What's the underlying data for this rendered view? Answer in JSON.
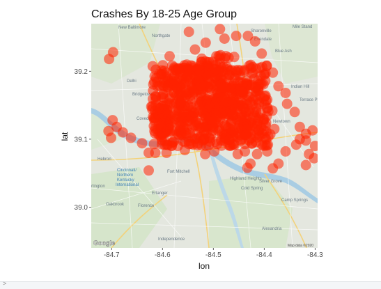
{
  "chart_data": {
    "type": "scatter",
    "title": "Crashes By 18-25 Age Group",
    "xlabel": "lon",
    "ylabel": "lat",
    "xlim": [
      -84.74,
      -84.295
    ],
    "ylim": [
      38.94,
      39.27
    ],
    "x_ticks": [
      -84.7,
      -84.6,
      -84.5,
      -84.4,
      -84.3
    ],
    "x_tick_labels": [
      "-84.7",
      "-84.6",
      "-84.5",
      "-84.4",
      "-84.3"
    ],
    "y_ticks": [
      39.0,
      39.1,
      39.2
    ],
    "y_tick_labels": [
      "39.0",
      "39.1",
      "39.2"
    ],
    "point_color": "#ff2200",
    "point_alpha": 0.55,
    "dense_region": {
      "x_range": [
        -84.62,
        -84.39
      ],
      "y_range": [
        39.09,
        39.21
      ],
      "note_core": [
        [
          -84.58,
          39.13
        ],
        [
          -84.52,
          39.15
        ],
        [
          -84.47,
          39.16
        ],
        [
          -84.44,
          39.13
        ],
        [
          -84.55,
          39.19
        ],
        [
          -84.5,
          39.2
        ]
      ]
    },
    "points": [
      [
        -84.705,
        39.218
      ],
      [
        -84.697,
        39.228
      ],
      [
        -84.487,
        39.262
      ],
      [
        -84.478,
        39.248
      ],
      [
        -84.548,
        39.258
      ],
      [
        -84.586,
        39.222
      ],
      [
        -84.536,
        39.232
      ],
      [
        -84.515,
        39.242
      ],
      [
        -84.455,
        39.252
      ],
      [
        -84.432,
        39.252
      ],
      [
        -84.418,
        39.244
      ],
      [
        -84.405,
        39.226
      ],
      [
        -84.395,
        39.208
      ],
      [
        -84.383,
        39.198
      ],
      [
        -84.372,
        39.178
      ],
      [
        -84.358,
        39.168
      ],
      [
        -84.355,
        39.152
      ],
      [
        -84.34,
        39.14
      ],
      [
        -84.33,
        39.118
      ],
      [
        -84.318,
        39.108
      ],
      [
        -84.305,
        39.113
      ],
      [
        -84.3,
        39.09
      ],
      [
        -84.312,
        39.078
      ],
      [
        -84.318,
        39.062
      ],
      [
        -84.302,
        39.072
      ],
      [
        -84.337,
        39.092
      ],
      [
        -84.358,
        39.082
      ],
      [
        -84.372,
        39.064
      ],
      [
        -84.383,
        39.057
      ],
      [
        -84.394,
        39.082
      ],
      [
        -84.405,
        39.092
      ],
      [
        -84.414,
        39.078
      ],
      [
        -84.427,
        39.064
      ],
      [
        -84.433,
        39.058
      ],
      [
        -84.438,
        39.082
      ],
      [
        -84.452,
        39.078
      ],
      [
        -84.462,
        39.092
      ],
      [
        -84.476,
        39.102
      ],
      [
        -84.498,
        39.082
      ],
      [
        -84.516,
        39.078
      ],
      [
        -84.531,
        39.091
      ],
      [
        -84.556,
        39.084
      ],
      [
        -84.57,
        39.09
      ],
      [
        -84.592,
        39.08
      ],
      [
        -84.614,
        39.08
      ],
      [
        -84.627,
        39.08
      ],
      [
        -84.64,
        39.094
      ],
      [
        -84.662,
        39.102
      ],
      [
        -84.678,
        39.11
      ],
      [
        -84.69,
        39.118
      ],
      [
        -84.698,
        39.128
      ],
      [
        -84.706,
        39.112
      ],
      [
        -84.701,
        39.102
      ],
      [
        -84.627,
        39.054
      ],
      [
        -84.615,
        39.142
      ],
      [
        -84.622,
        39.148
      ],
      [
        -84.599,
        39.188
      ],
      [
        -84.61,
        39.178
      ],
      [
        -84.487,
        39.212
      ],
      [
        -84.47,
        39.22
      ],
      [
        -84.459,
        39.221
      ],
      [
        -84.422,
        39.198
      ],
      [
        -84.408,
        39.182
      ],
      [
        -84.394,
        39.158
      ],
      [
        -84.384,
        39.142
      ],
      [
        -84.38,
        39.115
      ],
      [
        -84.388,
        39.107
      ],
      [
        -84.33,
        39.1
      ],
      [
        -84.318,
        39.098
      ]
    ]
  }
}
